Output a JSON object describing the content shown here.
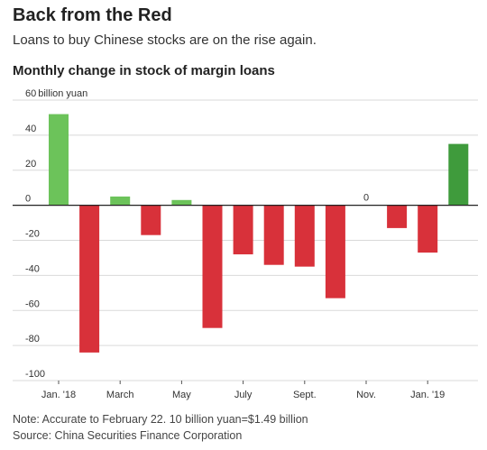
{
  "header": {
    "title": "Back from the Red",
    "subtitle": "Loans to buy Chinese stocks are on the rise again."
  },
  "footer": {
    "note": "Note: Accurate to February 22. 10 billion yuan=$1.49 billion",
    "source": "Source: China Securities Finance Corporation"
  },
  "chart_data": {
    "type": "bar",
    "title": "Monthly change in stock of margin loans",
    "ylabel": "",
    "xlabel": "",
    "unit_label": "billion yuan",
    "ylim": [
      -100,
      60
    ],
    "yticks": [
      {
        "value": 60,
        "label": "60"
      },
      {
        "value": 40,
        "label": "40"
      },
      {
        "value": 20,
        "label": "20"
      },
      {
        "value": 0,
        "label": "0"
      },
      {
        "value": -20,
        "label": "-20"
      },
      {
        "value": -40,
        "label": "-40"
      },
      {
        "value": -60,
        "label": "-60"
      },
      {
        "value": -80,
        "label": "-80"
      },
      {
        "value": -100,
        "label": "-100"
      }
    ],
    "categories": [
      "Jan. 2018",
      "Feb. 2018",
      "Mar. 2018",
      "Apr. 2018",
      "May 2018",
      "Jun. 2018",
      "Jul. 2018",
      "Aug. 2018",
      "Sep. 2018",
      "Oct. 2018",
      "Nov. 2018",
      "Dec. 2018",
      "Jan. 2019",
      "Feb. 2019"
    ],
    "values": [
      52,
      -84,
      5,
      -17,
      3,
      -70,
      -28,
      -34,
      -35,
      -53,
      0,
      -13,
      -27,
      35
    ],
    "xticks": [
      {
        "index": 0,
        "label": "Jan. '18"
      },
      {
        "index": 2,
        "label": "March"
      },
      {
        "index": 4,
        "label": "May"
      },
      {
        "index": 6,
        "label": "July"
      },
      {
        "index": 8,
        "label": "Sept."
      },
      {
        "index": 10,
        "label": "Nov."
      },
      {
        "index": 12,
        "label": "Jan. '19"
      }
    ],
    "data_labels": [
      {
        "index": 10,
        "label": "0"
      }
    ],
    "colors": {
      "positive": "#6cc35a",
      "positive_latest": "#3f9b3c",
      "negative": "#d8313a",
      "gridline": "#d9d9d9",
      "zero_line": "#222222"
    },
    "grid": true,
    "legend": "none"
  }
}
